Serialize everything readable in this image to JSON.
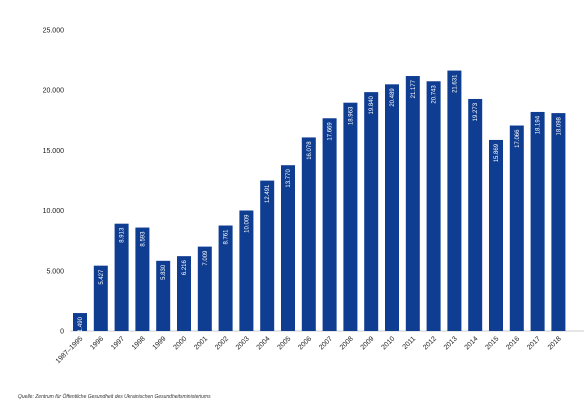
{
  "source_note": "Quelle: Zentrum für Öffentliche Gesundheit des Ukrainischen Gesundheitsministeriums",
  "colors": {
    "bar": "#0f3d91",
    "axis": "#999999",
    "label_text": "#ffffff"
  },
  "chart_data": {
    "type": "bar",
    "title": "",
    "xlabel": "",
    "ylabel": "",
    "ylim": [
      0,
      25000
    ],
    "yticks": [
      0,
      5000,
      10000,
      15000,
      20000,
      25000
    ],
    "ytick_labels": [
      "0",
      "5.000",
      "10.000",
      "15.000",
      "20.000",
      "25.000"
    ],
    "grid": false,
    "categories": [
      "1987–1995",
      "1996",
      "1997",
      "1998",
      "1999",
      "2000",
      "2001",
      "2002",
      "2003",
      "2004",
      "2005",
      "2006",
      "2007",
      "2008",
      "2009",
      "2010",
      "2011",
      "2012",
      "2013",
      "2014",
      "2015",
      "2016",
      "2017",
      "2018"
    ],
    "values": [
      1490,
      5427,
      8913,
      8593,
      5830,
      6216,
      7009,
      8761,
      10009,
      12491,
      13770,
      16078,
      17669,
      18963,
      19840,
      20489,
      21177,
      20743,
      21631,
      19273,
      15869,
      17066,
      18194,
      18098
    ],
    "value_labels": [
      "1.490",
      "5.427",
      "8.913",
      "8.593",
      "5.830",
      "6.216",
      "7.009",
      "8.761",
      "10.009",
      "12.491",
      "13.770",
      "16.078",
      "17.669",
      "18.963",
      "19.840",
      "20.489",
      "21.177",
      "20.743",
      "21.631",
      "19.273",
      "15.869",
      "17.066",
      "18.194",
      "18.098"
    ]
  }
}
